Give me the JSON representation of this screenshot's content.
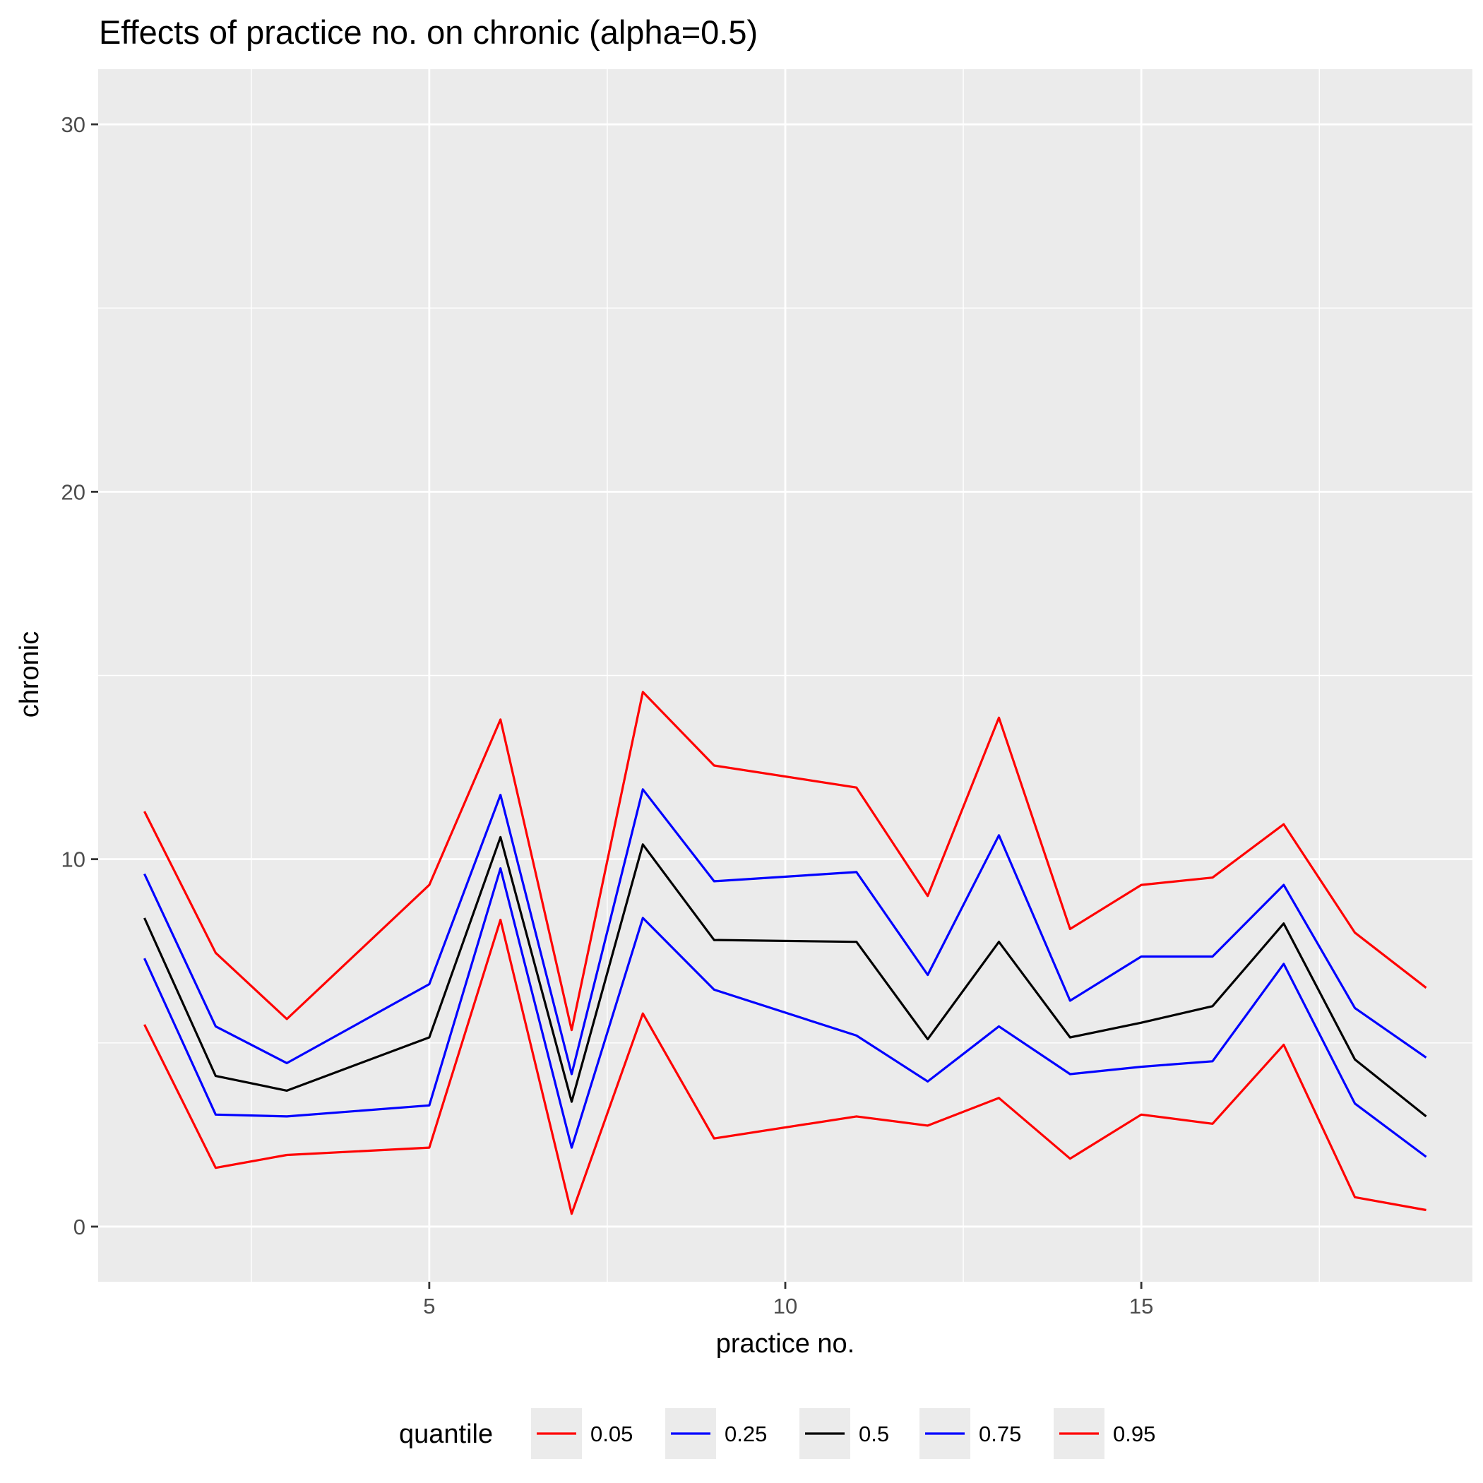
{
  "chart_data": {
    "type": "line",
    "title": "Effects of practice no. on chronic (alpha=0.5)",
    "xlabel": "practice no.",
    "ylabel": "chronic",
    "xlim": [
      0.35,
      19.65
    ],
    "ylim": [
      -1.5,
      31.5
    ],
    "x_ticks": [
      5,
      10,
      15
    ],
    "y_ticks": [
      0,
      10,
      20,
      30
    ],
    "x_minor_grid": [
      2.5,
      7.5,
      12.5,
      17.5
    ],
    "y_minor_grid": [
      5,
      15,
      25
    ],
    "grid": true,
    "legend_position": "bottom",
    "legend_title": "quantile",
    "colors": {
      "panel_background": "#ebebeb",
      "grid": "#ffffff",
      "tick_mark": "#333333"
    },
    "x": [
      1,
      2,
      3,
      5,
      6,
      7,
      8,
      9,
      11,
      12,
      13,
      14,
      15,
      16,
      17,
      18,
      19
    ],
    "series": [
      {
        "name": "0.05",
        "color": "#ff0000",
        "values": [
          5.5,
          1.6,
          1.95,
          2.15,
          8.35,
          0.35,
          5.8,
          2.4,
          3.0,
          2.75,
          3.5,
          1.85,
          3.05,
          2.8,
          4.95,
          0.8,
          0.45
        ]
      },
      {
        "name": "0.25",
        "color": "#0000ff",
        "values": [
          7.3,
          3.05,
          3.0,
          3.3,
          9.75,
          2.15,
          8.4,
          6.45,
          5.2,
          3.95,
          5.45,
          4.15,
          4.35,
          4.5,
          7.15,
          3.35,
          1.9
        ]
      },
      {
        "name": "0.5",
        "color": "#000000",
        "values": [
          8.4,
          4.1,
          3.7,
          5.15,
          10.6,
          3.4,
          10.4,
          7.8,
          7.75,
          5.1,
          7.75,
          5.15,
          5.55,
          6.0,
          8.25,
          4.55,
          3.0
        ]
      },
      {
        "name": "0.75",
        "color": "#0000ff",
        "values": [
          9.6,
          5.45,
          4.45,
          6.6,
          11.75,
          4.15,
          11.9,
          9.4,
          9.65,
          6.85,
          10.65,
          6.15,
          7.35,
          7.35,
          9.3,
          5.95,
          4.6
        ]
      },
      {
        "name": "0.95",
        "color": "#ff0000",
        "values": [
          11.3,
          7.45,
          5.65,
          9.3,
          13.8,
          5.35,
          14.55,
          12.55,
          11.95,
          9.0,
          13.85,
          8.1,
          9.3,
          9.5,
          10.95,
          8.0,
          6.5
        ]
      }
    ]
  }
}
